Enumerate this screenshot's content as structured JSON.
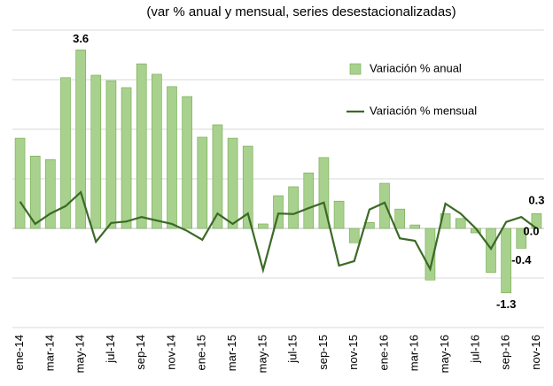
{
  "chart_data": {
    "type": "bar+line",
    "title": "(var % anual y mensual, series desestacionalizadas)",
    "categories": [
      "ene-14",
      null,
      "mar-14",
      null,
      "may-14",
      null,
      "jul-14",
      null,
      "sep-14",
      null,
      "nov-14",
      null,
      "ene-15",
      null,
      "mar-15",
      null,
      "may-15",
      null,
      "jul-15",
      null,
      "sep-15",
      null,
      "nov-15",
      null,
      "ene-16",
      null,
      "mar-16",
      null,
      "may-16",
      null,
      "jul-16",
      null,
      "sep-16",
      null,
      "nov-16"
    ],
    "series": [
      {
        "name": "Variación % anual",
        "type": "bar",
        "color": "#a9d18e",
        "values": [
          1.82,
          1.46,
          1.39,
          3.04,
          3.6,
          3.09,
          2.98,
          2.84,
          3.32,
          3.11,
          2.86,
          2.66,
          1.84,
          2.09,
          1.82,
          1.66,
          0.09,
          0.66,
          0.84,
          1.12,
          1.43,
          0.55,
          -0.29,
          0.12,
          0.91,
          0.39,
          0.07,
          -1.04,
          0.3,
          0.2,
          -0.09,
          -0.89,
          -1.3,
          -0.4,
          0.3
        ],
        "value_labels": [
          null,
          null,
          null,
          null,
          "3.6",
          null,
          null,
          null,
          null,
          null,
          null,
          null,
          null,
          null,
          null,
          null,
          null,
          null,
          null,
          null,
          null,
          null,
          null,
          null,
          null,
          null,
          null,
          null,
          null,
          null,
          null,
          null,
          "-1.3",
          "-0.4",
          "0.3"
        ]
      },
      {
        "name": "Variación % mensual",
        "type": "line",
        "color": "#3b6a26",
        "values": [
          0.54,
          0.09,
          0.3,
          0.45,
          0.73,
          -0.27,
          0.11,
          0.14,
          0.23,
          0.16,
          0.09,
          -0.05,
          -0.23,
          0.3,
          0.09,
          0.3,
          -0.84,
          0.3,
          0.29,
          0.41,
          0.52,
          -0.75,
          -0.66,
          0.38,
          0.52,
          -0.2,
          -0.25,
          -0.82,
          0.5,
          0.3,
          0.0,
          -0.41,
          0.13,
          0.23,
          0.0
        ],
        "value_labels": [
          null,
          null,
          null,
          null,
          null,
          null,
          null,
          null,
          null,
          null,
          null,
          null,
          null,
          null,
          null,
          null,
          null,
          null,
          null,
          null,
          null,
          null,
          null,
          null,
          null,
          null,
          null,
          null,
          null,
          null,
          null,
          null,
          null,
          null,
          "0.0"
        ]
      }
    ],
    "ylim": [
      -2,
      4
    ],
    "yticks": [
      -2,
      -1,
      0,
      1,
      2,
      3,
      4
    ],
    "grid": true,
    "legend": "top-right"
  }
}
